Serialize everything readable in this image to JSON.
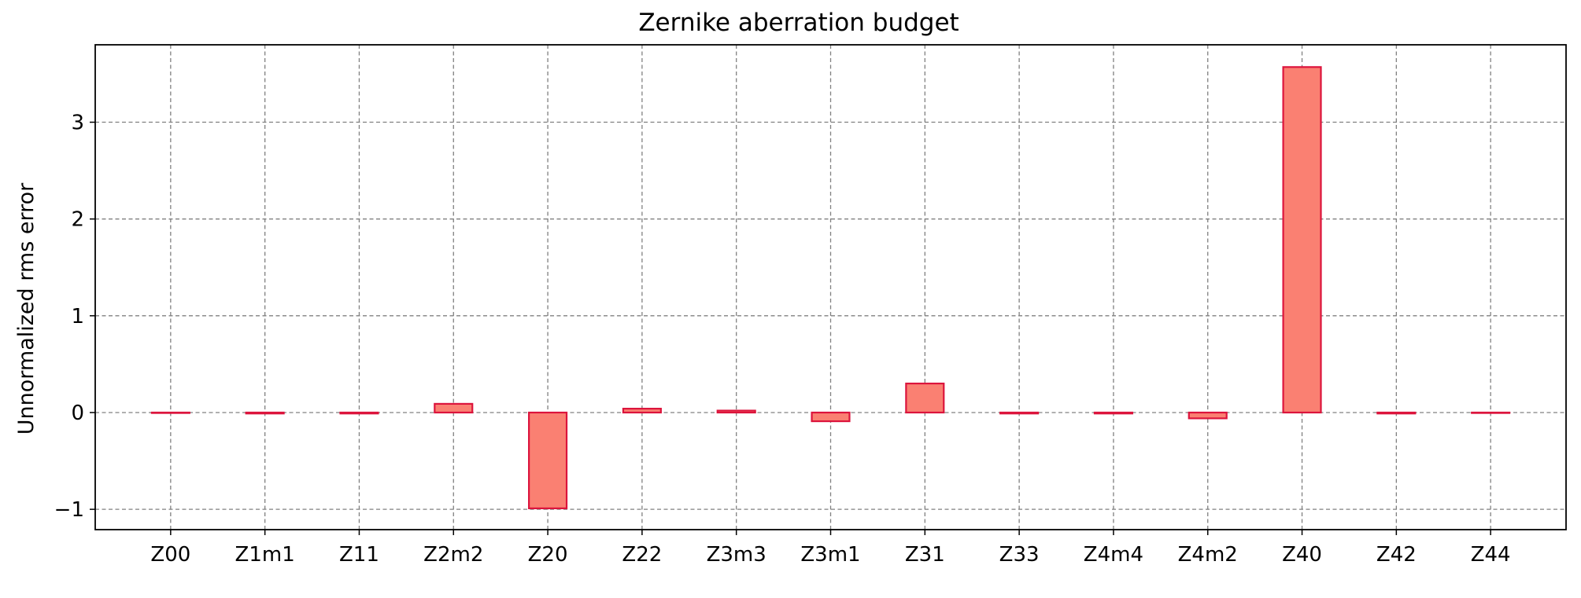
{
  "chart_data": {
    "type": "bar",
    "title": "Zernike aberration budget",
    "xlabel": "",
    "ylabel": "Unnormalized rms error",
    "categories": [
      "Z00",
      "Z1m1",
      "Z11",
      "Z2m2",
      "Z20",
      "Z22",
      "Z3m3",
      "Z3m1",
      "Z31",
      "Z33",
      "Z4m4",
      "Z4m2",
      "Z40",
      "Z42",
      "Z44"
    ],
    "values": [
      0.0,
      -0.01,
      -0.01,
      0.09,
      -0.99,
      0.04,
      0.02,
      -0.09,
      0.3,
      -0.01,
      -0.01,
      -0.06,
      3.57,
      -0.01,
      0.0
    ],
    "ylim": [
      -1.21,
      3.8
    ],
    "yticks": [
      -1,
      0,
      1,
      2,
      3
    ],
    "grid": true,
    "colors": {
      "bar_fill": "#fa8072",
      "bar_edge": "#dc143c",
      "grid": "#808080"
    }
  }
}
